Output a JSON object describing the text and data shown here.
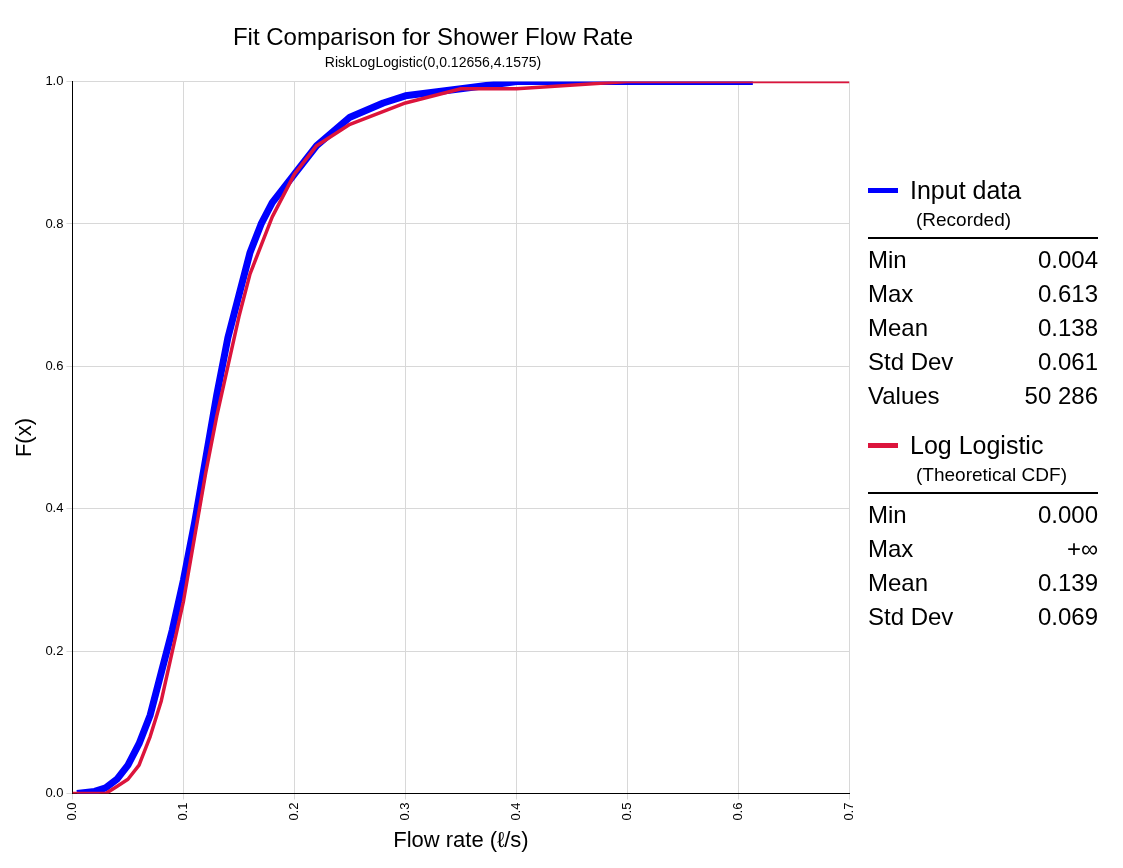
{
  "chart_data": {
    "type": "line",
    "title": "Fit Comparison for Shower Flow Rate",
    "subtitle": "RiskLogLogistic(0,0.12656,4.1575)",
    "xlabel": "Flow rate (ℓ/s)",
    "ylabel": "F(x)",
    "xlim": [
      0,
      0.7
    ],
    "xticks": [
      {
        "value": 0,
        "label": "0.0"
      },
      0.1,
      0.2,
      0.3,
      0.4,
      0.5,
      0.6,
      0.7
    ],
    "ylim": [
      0,
      1
    ],
    "yticks": [
      {
        "value": 0,
        "label": "0.0"
      },
      0.2,
      0.4,
      0.6,
      0.8,
      {
        "value": 1,
        "label": "1.0"
      }
    ],
    "grid": true,
    "legend": "right",
    "marker": "none",
    "line_style": "solid",
    "series": [
      {
        "name": "Input data",
        "color": "#0000ff",
        "x": [
          0.004,
          0.02,
          0.03,
          0.04,
          0.05,
          0.06,
          0.07,
          0.08,
          0.09,
          0.1,
          0.11,
          0.12,
          0.13,
          0.14,
          0.15,
          0.16,
          0.17,
          0.18,
          0.2,
          0.22,
          0.25,
          0.28,
          0.3,
          0.35,
          0.4,
          0.5,
          0.613
        ],
        "values": [
          0,
          0.003,
          0.008,
          0.02,
          0.04,
          0.07,
          0.11,
          0.17,
          0.23,
          0.3,
          0.38,
          0.47,
          0.56,
          0.64,
          0.7,
          0.76,
          0.8,
          0.83,
          0.87,
          0.91,
          0.95,
          0.97,
          0.98,
          0.99,
          1,
          1,
          1
        ]
      },
      {
        "name": "Log Logistic",
        "color": "#dc143c",
        "x": [
          0,
          0.02,
          0.03,
          0.04,
          0.05,
          0.06,
          0.07,
          0.08,
          0.09,
          0.1,
          0.11,
          0.12,
          0.13,
          0.14,
          0.15,
          0.16,
          0.18,
          0.2,
          0.22,
          0.25,
          0.3,
          0.35,
          0.4,
          0.5,
          0.6,
          0.7
        ],
        "values": [
          0,
          0,
          0,
          0.01,
          0.02,
          0.04,
          0.08,
          0.13,
          0.2,
          0.27,
          0.36,
          0.45,
          0.53,
          0.6,
          0.67,
          0.73,
          0.81,
          0.87,
          0.91,
          0.94,
          0.97,
          0.99,
          0.99,
          1,
          1,
          1
        ]
      }
    ],
    "annotations": [
      "(Recorded)",
      "Min",
      "0.004",
      "Max",
      "0.613",
      "Mean",
      "0.138",
      "Std Dev",
      "0.061",
      "Values",
      "50 286",
      "(Theoretical CDF)",
      "Min",
      "0.000",
      "Max",
      "+∞",
      "Mean",
      "0.139",
      "Std Dev",
      "0.069"
    ]
  }
}
